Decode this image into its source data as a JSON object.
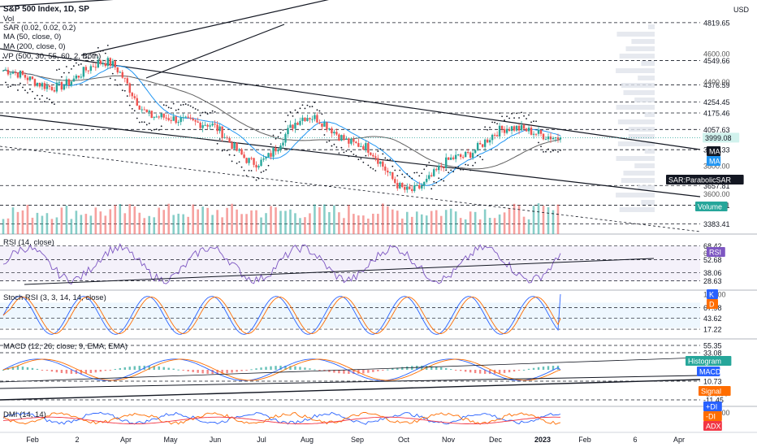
{
  "header": {
    "title": "S&P 500 Index, 1D, SP",
    "currency": "USD"
  },
  "indicators": {
    "vol": "Vol",
    "sar": "SAR (0.02, 0.02, 0.2)",
    "ma50": "MA (50, close, 0)",
    "ma200": "MA (200, close, 0)",
    "vp": "VP (500, 30, 55, 60, 2, Both)",
    "rsi": "RSI (14, close)",
    "stoch": "Stoch RSI (3, 3, 14, 14, close)",
    "macd": "MACD (12, 26, close, 9, EMA, EMA)",
    "dmi": "DMI (14, 14)"
  },
  "colors": {
    "up": "#26a69a",
    "down": "#ef5350",
    "ma50": "#2196f3",
    "ma200": "#616161",
    "rsi": "#7e57c2",
    "k": "#2962ff",
    "d": "#ff6d00",
    "macd": "#2962ff",
    "signal": "#ff6d00",
    "plus_di": "#2962ff",
    "minus_di": "#ff6d00",
    "adx": "#f23645"
  },
  "price_axis": {
    "dashed_levels": [
      "4819.65",
      "4549.66",
      "4376.59",
      "4254.45",
      "4175.46",
      "4057.63",
      "3913.33",
      "3657.81",
      "3516.91",
      "3383.41"
    ],
    "plain_ticks": [
      "4600.00",
      "4400.00",
      "3800.00",
      "3600.00"
    ],
    "last_price": "3999.08",
    "tags": {
      "ma_a": "MA",
      "ma_b": "MA",
      "sar": "SAR:ParabolicSAR",
      "volume": "Volume"
    }
  },
  "rsi_axis": {
    "levels": [
      "68.42",
      "52.68",
      "38.06",
      "28.63"
    ],
    "ticks": [
      "60.00"
    ],
    "tag": "RSI"
  },
  "stoch_axis": {
    "levels": [
      "67.98",
      "43.62",
      "17.22"
    ],
    "ticks": [
      "100.00"
    ],
    "tags": [
      "K",
      "D"
    ]
  },
  "macd_axis": {
    "levels": [
      "55.35",
      "33.08",
      "10.73",
      "-11.45"
    ],
    "ticks": [
      "0.00",
      "-100.00"
    ],
    "tags": [
      "Histogram",
      "MACD",
      "Signal"
    ]
  },
  "dmi_axis": {
    "ticks": [
      "40.0000"
    ],
    "tags": [
      "+DI",
      "-DI",
      "ADX"
    ]
  },
  "time_axis": [
    "Feb",
    "2",
    "Apr",
    "May",
    "Jun",
    "Jul",
    "Aug",
    "Sep",
    "Oct",
    "Nov",
    "Dec",
    "2023",
    "Feb",
    "6",
    "Apr"
  ],
  "chart_data": {
    "type": "candlestick",
    "x_labels": [
      "Feb",
      "2",
      "Apr",
      "May",
      "Jun",
      "Jul",
      "Aug",
      "Sep",
      "Oct",
      "Nov",
      "Dec",
      "2023"
    ],
    "close_estimates": [
      {
        "x": "Feb",
        "close": 4480
      },
      {
        "x": "2",
        "close": 4360
      },
      {
        "x": "Apr",
        "close": 4540
      },
      {
        "x": "May",
        "close": 4150
      },
      {
        "x": "Jun",
        "close": 4100
      },
      {
        "x": "Jul",
        "close": 3820
      },
      {
        "x": "Aug",
        "close": 4150
      },
      {
        "x": "Sep",
        "close": 3950
      },
      {
        "x": "Oct",
        "close": 3620
      },
      {
        "x": "Nov",
        "close": 3860
      },
      {
        "x": "Dec",
        "close": 4070
      },
      {
        "x": "2023",
        "close": 3999.08
      }
    ],
    "last_price": 3999.08,
    "rsi_last": 60.0,
    "stoch_k_last": 100.0,
    "macd_last": 0.0
  }
}
